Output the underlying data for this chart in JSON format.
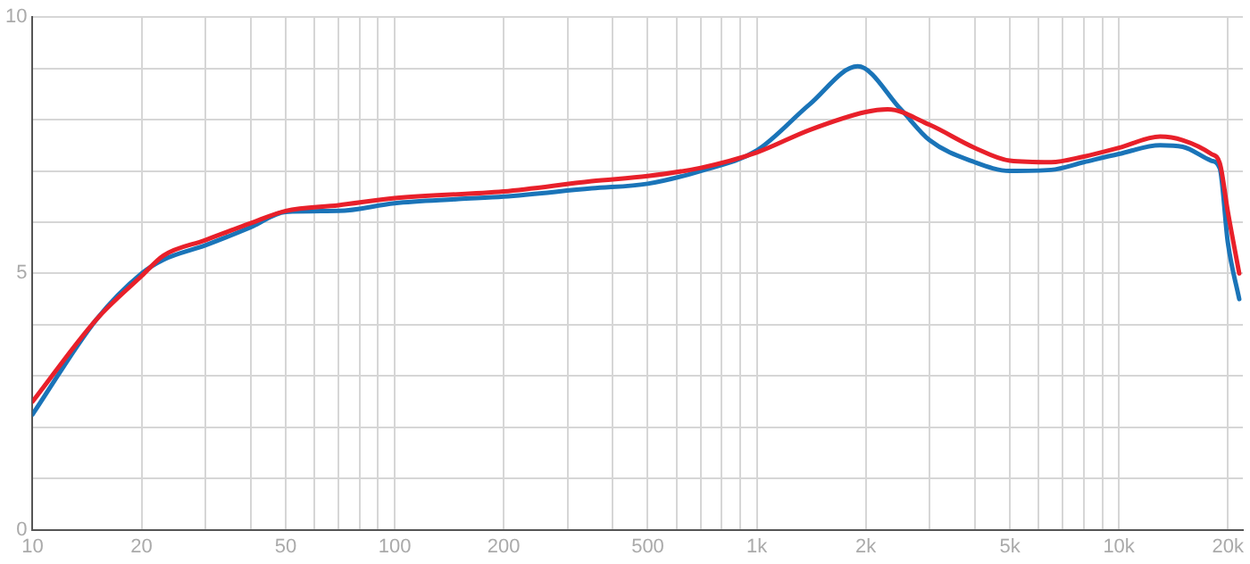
{
  "chart_data": {
    "type": "line",
    "log": "x",
    "grid": true,
    "legend": false,
    "marker": "none",
    "line_style": "solid",
    "xlim": [
      10,
      22000
    ],
    "ylim": [
      0,
      10
    ],
    "xticks": [
      10,
      20,
      {
        "value": 30,
        "label": null
      },
      {
        "value": 40,
        "label": null
      },
      50,
      {
        "value": 60,
        "label": null
      },
      {
        "value": 70,
        "label": null
      },
      {
        "value": 80,
        "label": null
      },
      {
        "value": 90,
        "label": null
      },
      100,
      200,
      {
        "value": 300,
        "label": null
      },
      {
        "value": 400,
        "label": null
      },
      500,
      {
        "value": 600,
        "label": null
      },
      {
        "value": 700,
        "label": null
      },
      {
        "value": 800,
        "label": null
      },
      {
        "value": 900,
        "label": null
      },
      {
        "value": 1000,
        "label": "1k"
      },
      {
        "value": 2000,
        "label": "2k"
      },
      {
        "value": 3000,
        "label": null
      },
      {
        "value": 4000,
        "label": null
      },
      {
        "value": 5000,
        "label": "5k"
      },
      {
        "value": 6000,
        "label": null
      },
      {
        "value": 7000,
        "label": null
      },
      {
        "value": 8000,
        "label": null
      },
      {
        "value": 9000,
        "label": null
      },
      {
        "value": 10000,
        "label": "10k"
      },
      {
        "value": 20000,
        "label": "20k"
      }
    ],
    "yticks": [
      0,
      {
        "value": 1,
        "label": null
      },
      {
        "value": 2,
        "label": null
      },
      {
        "value": 3,
        "label": null
      },
      {
        "value": 4,
        "label": null
      },
      5,
      {
        "value": 6,
        "label": null
      },
      {
        "value": 7,
        "label": null
      },
      {
        "value": 8,
        "label": null
      },
      {
        "value": 9,
        "label": null
      },
      10
    ],
    "series": [
      {
        "color": "#e8202a",
        "x": [
          10,
          15,
          20,
          23,
          30,
          40,
          50,
          70,
          100,
          200,
          350,
          500,
          700,
          1000,
          1400,
          2000,
          2300,
          3000,
          4000,
          5000,
          6500,
          8000,
          10000,
          13000,
          15000,
          18000,
          19000,
          20000,
          21500
        ],
        "values": [
          2.5,
          4.1,
          4.95,
          5.35,
          5.65,
          5.98,
          6.22,
          6.33,
          6.47,
          6.6,
          6.8,
          6.9,
          7.06,
          7.36,
          7.8,
          8.15,
          8.2,
          7.9,
          7.45,
          7.2,
          7.17,
          7.28,
          7.45,
          7.67,
          7.6,
          7.33,
          7.15,
          6.2,
          5.0
        ]
      },
      {
        "color": "#1a74b8",
        "x": [
          10,
          15,
          20,
          23,
          30,
          40,
          50,
          70,
          100,
          150,
          200,
          350,
          500,
          700,
          1000,
          1400,
          1900,
          2500,
          3000,
          4000,
          5000,
          6500,
          8000,
          10000,
          13000,
          15000,
          18000,
          19000,
          20000,
          21500
        ],
        "values": [
          2.25,
          4.1,
          5.0,
          5.27,
          5.55,
          5.9,
          6.2,
          6.22,
          6.37,
          6.45,
          6.5,
          6.66,
          6.75,
          7.0,
          7.4,
          8.3,
          9.04,
          8.2,
          7.6,
          7.17,
          7.0,
          7.02,
          7.17,
          7.33,
          7.5,
          7.47,
          7.2,
          7.05,
          5.6,
          4.5
        ]
      }
    ]
  }
}
